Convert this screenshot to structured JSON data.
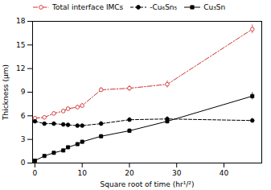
{
  "chart_data": {
    "type": "line",
    "xlabel": "Square root of time (hr¹/²)",
    "ylabel": "Thickness (μm)",
    "x": [
      0,
      2,
      4,
      6,
      7,
      9,
      10,
      14,
      20,
      28,
      46
    ],
    "xlim": [
      -0.5,
      48
    ],
    "ylim": [
      0,
      18
    ],
    "xticks": [
      0,
      10,
      20,
      30,
      40
    ],
    "yticks": [
      0,
      3,
      6,
      9,
      12,
      15,
      18
    ],
    "legend": "upper left",
    "series": [
      {
        "name": "Total interface IMCs",
        "color": "#d03030",
        "marker": "open-circle",
        "line_style": "dashdot",
        "values": [
          5.7,
          5.8,
          6.3,
          6.6,
          6.9,
          7.1,
          7.3,
          9.3,
          9.5,
          10.0,
          17.0
        ],
        "yerr": [
          0.15,
          0.15,
          0.2,
          0.2,
          0.25,
          0.25,
          0.3,
          0.3,
          0.35,
          0.45,
          0.55
        ]
      },
      {
        "name": "-Cu₆Sn₅",
        "color": "#000000",
        "marker": "circle",
        "line_style": "dashed",
        "values": [
          5.3,
          5.0,
          5.0,
          4.9,
          4.85,
          4.75,
          4.75,
          5.0,
          5.5,
          5.6,
          5.4
        ],
        "yerr": [
          0.12,
          0.12,
          0.12,
          0.12,
          0.18,
          0.18,
          0.18,
          0.28,
          0.28,
          0.28,
          0.28
        ]
      },
      {
        "name": "Cu₃Sn",
        "color": "#000000",
        "marker": "square",
        "line_style": "solid",
        "values": [
          0.3,
          0.9,
          1.3,
          1.6,
          2.0,
          2.4,
          2.7,
          3.4,
          4.1,
          5.3,
          8.5
        ],
        "yerr": [
          0.08,
          0.08,
          0.08,
          0.12,
          0.12,
          0.18,
          0.18,
          0.22,
          0.28,
          0.32,
          0.45
        ]
      }
    ]
  }
}
